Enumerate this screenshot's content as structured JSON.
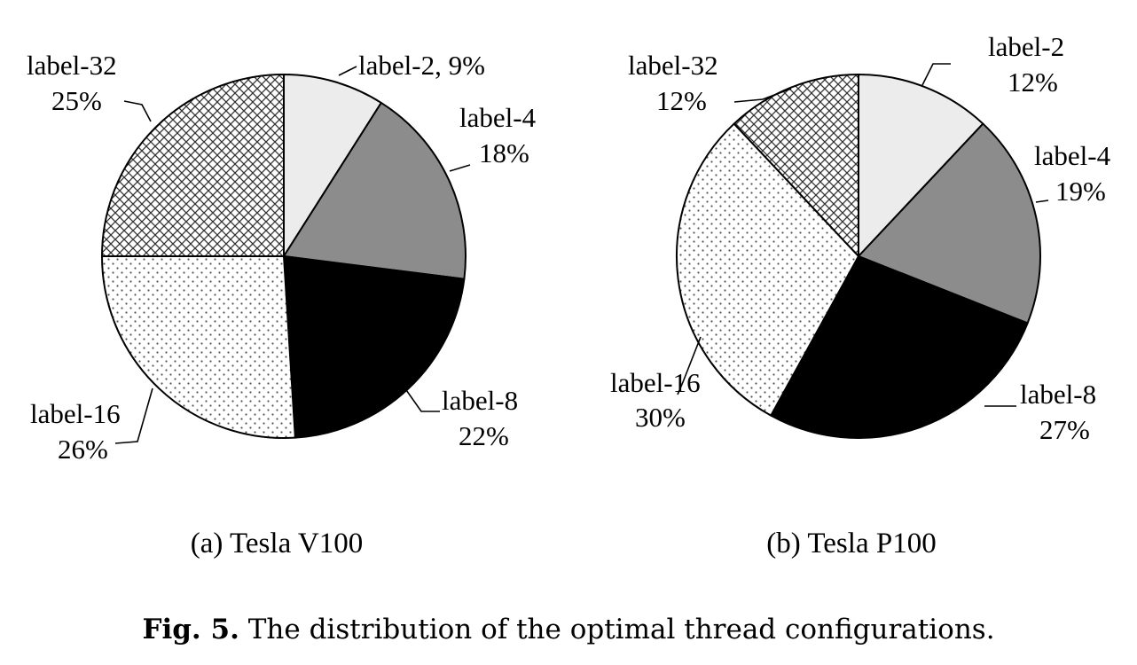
{
  "chart_data": [
    {
      "type": "pie",
      "title": "(a) Tesla V100",
      "slices": [
        {
          "label": "label-2",
          "value": 9,
          "value_text": "9%",
          "fill": "#ececec",
          "pattern": "solid"
        },
        {
          "label": "label-4",
          "value": 18,
          "value_text": "18%",
          "fill": "#8c8c8c",
          "pattern": "solid"
        },
        {
          "label": "label-8",
          "value": 22,
          "value_text": "22%",
          "fill": "#000000",
          "pattern": "solid"
        },
        {
          "label": "label-16",
          "value": 26,
          "value_text": "26%",
          "fill": "#ffffff",
          "pattern": "dots"
        },
        {
          "label": "label-32",
          "value": 25,
          "value_text": "25%",
          "fill": "#ffffff",
          "pattern": "crosshatch"
        }
      ]
    },
    {
      "type": "pie",
      "title": "(b) Tesla P100",
      "slices": [
        {
          "label": "label-2",
          "value": 12,
          "value_text": "12%",
          "fill": "#ececec",
          "pattern": "solid"
        },
        {
          "label": "label-4",
          "value": 19,
          "value_text": "19%",
          "fill": "#8c8c8c",
          "pattern": "solid"
        },
        {
          "label": "label-8",
          "value": 27,
          "value_text": "27%",
          "fill": "#000000",
          "pattern": "solid"
        },
        {
          "label": "label-16",
          "value": 30,
          "value_text": "30%",
          "fill": "#ffffff",
          "pattern": "dots"
        },
        {
          "label": "label-32",
          "value": 12,
          "value_text": "12%",
          "fill": "#ffffff",
          "pattern": "crosshatch"
        }
      ]
    }
  ],
  "caption": {
    "label": "Fig. 5.",
    "text": " The distribution of the optimal thread configurations."
  }
}
